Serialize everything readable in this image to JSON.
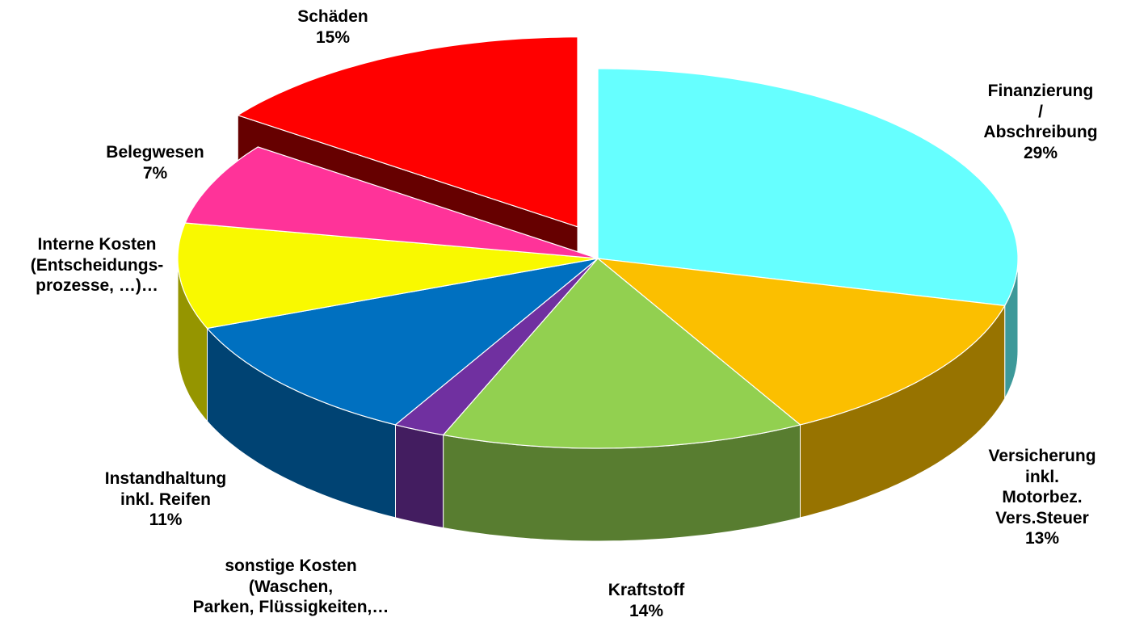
{
  "chart_data": {
    "type": "pie3d",
    "categories": [
      "Finanzierung /\nAbschreibung",
      "Versicherung\ninkl. Motorbez.\nVers.Steuer",
      "Kraftstoff",
      "sonstige Kosten\n(Waschen,\nParken, Flüssigkeiten,…",
      "Instandhaltung\ninkl. Reifen",
      "Interne Kosten\n(Entscheidungs-\nprozesse, …)…",
      "Belegwesen",
      "Schäden"
    ],
    "values": [
      29,
      13,
      14,
      2,
      11,
      9,
      7,
      15
    ],
    "value_labels": [
      "29%",
      "13%",
      "14%",
      null,
      "11%",
      null,
      "7%",
      "15%"
    ],
    "colors": [
      "#66ffff",
      "#fbbf00",
      "#92d050",
      "#7030a0",
      "#0070c0",
      "#f9f900",
      "#ff3399",
      "#ff0000"
    ],
    "exploded": [
      false,
      false,
      false,
      false,
      false,
      false,
      false,
      true
    ]
  }
}
